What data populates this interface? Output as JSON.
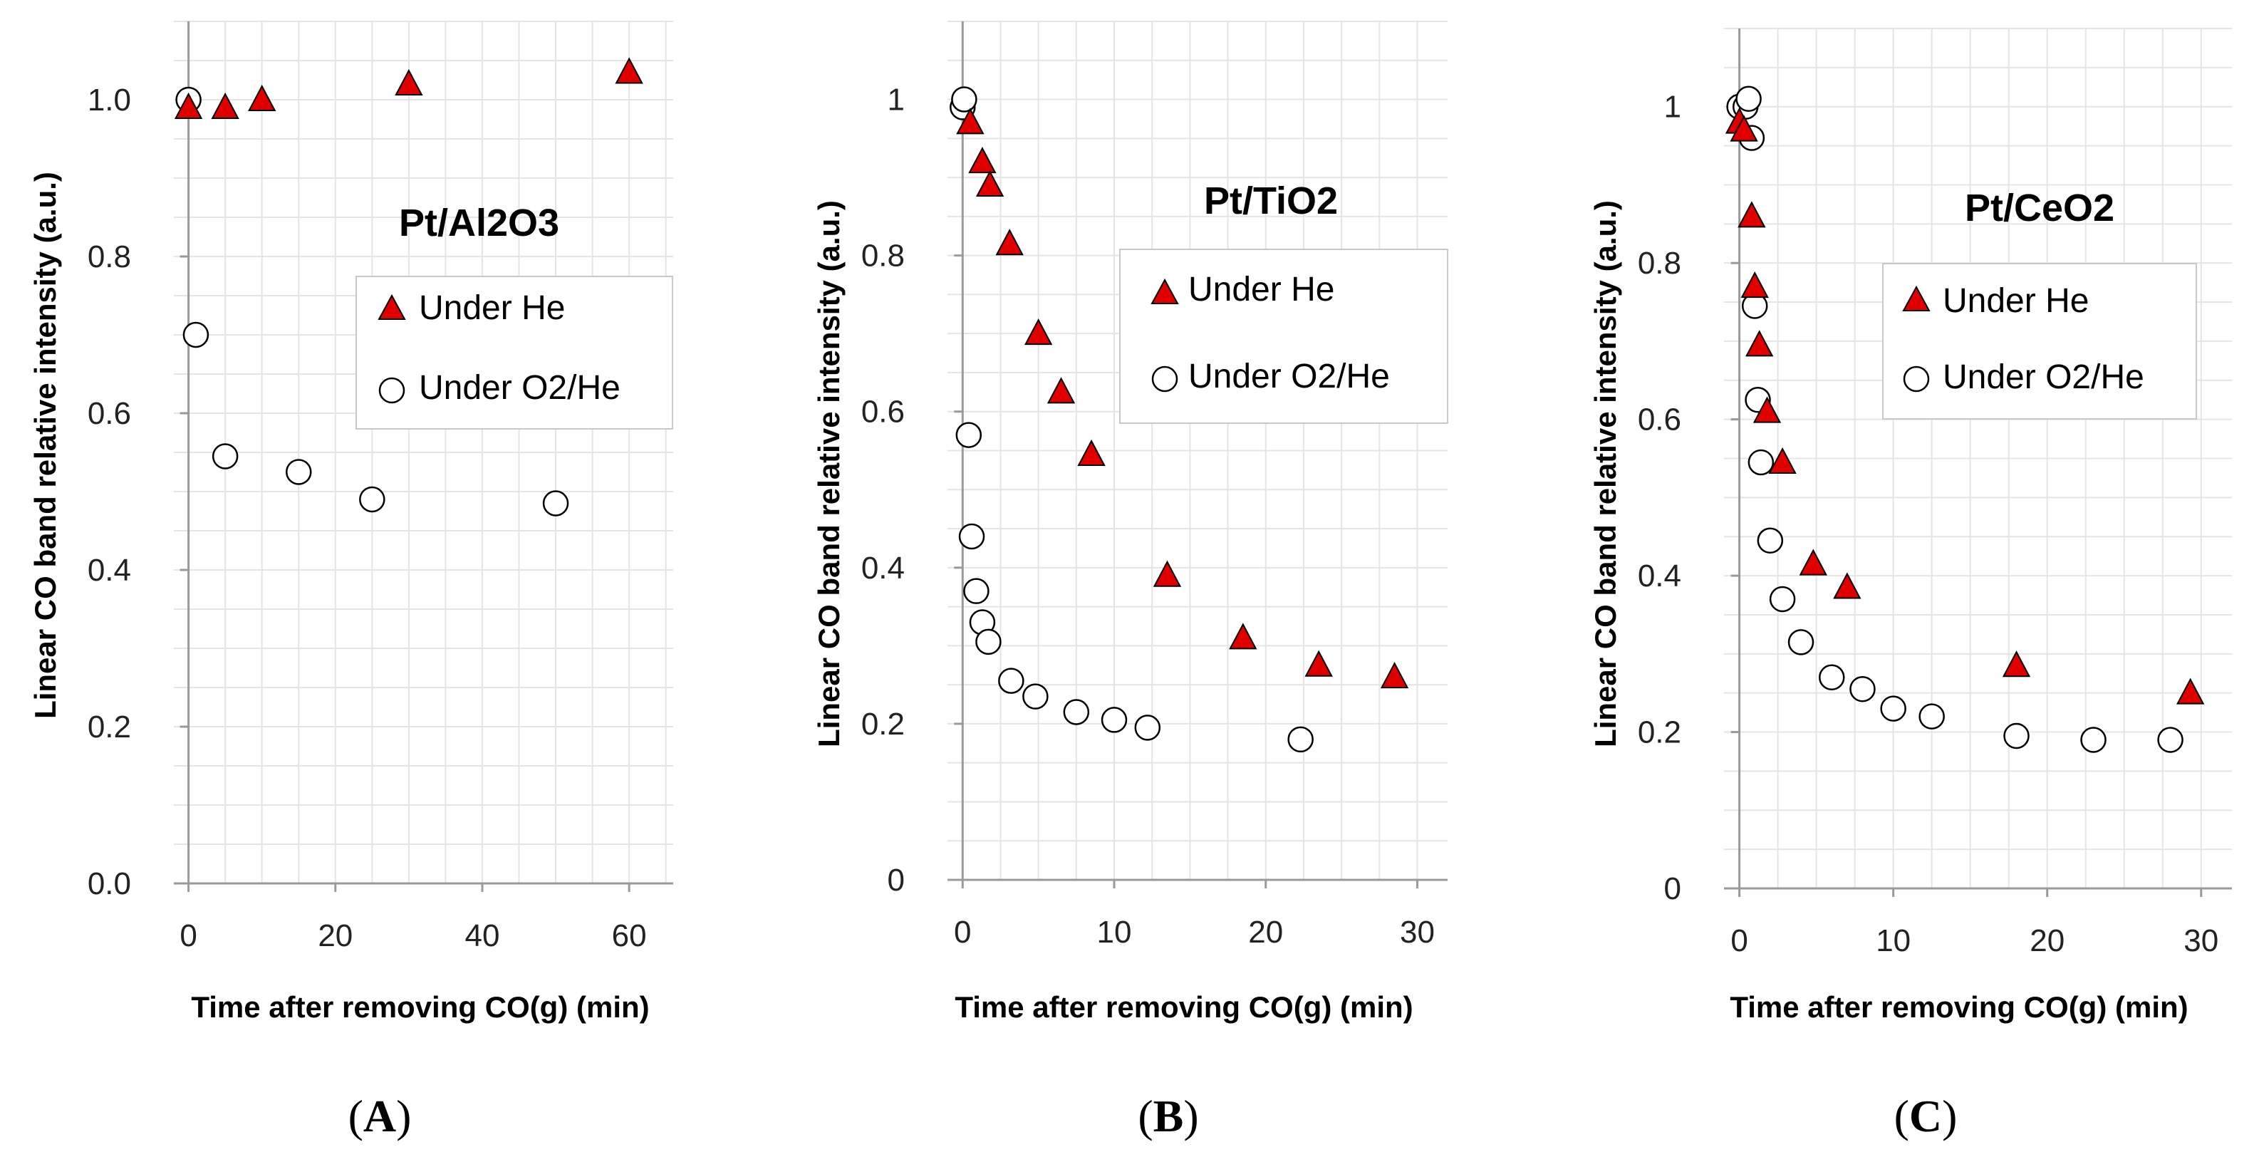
{
  "chart_data": [
    {
      "type": "scatter",
      "panel_label": "A",
      "title": "Pt/Al2O3",
      "xlabel": "Time after removing CO(g) (min)",
      "ylabel": "Linear CO band relative intensity (a.u.)",
      "xlim": [
        -2,
        66
      ],
      "ylim": [
        0,
        1.1
      ],
      "x_ticks": [
        "0",
        "20",
        "40",
        "60"
      ],
      "y_ticks": [
        "0.0",
        "0.2",
        "0.4",
        "0.6",
        "0.8",
        "1.0"
      ],
      "legend_position": "center-right",
      "series": [
        {
          "name": "Under He",
          "marker": "triangle",
          "color": "#e00000",
          "x": [
            0,
            5,
            10,
            30,
            60
          ],
          "y": [
            0.99,
            0.99,
            1.0,
            1.02,
            1.035
          ]
        },
        {
          "name": "Under O2/He",
          "marker": "circle",
          "color": "#ffffff",
          "x": [
            0,
            1,
            5,
            15,
            25,
            50
          ],
          "y": [
            1.0,
            0.7,
            0.545,
            0.525,
            0.49,
            0.485
          ]
        }
      ]
    },
    {
      "type": "scatter",
      "panel_label": "B",
      "title": "Pt/TiO2",
      "xlabel": "Time after removing CO(g) (min)",
      "ylabel": "Linear CO band relative intensity (a.u.)",
      "xlim": [
        -1,
        32
      ],
      "ylim": [
        0,
        1.1
      ],
      "x_ticks": [
        "0",
        "10",
        "20",
        "30"
      ],
      "y_ticks": [
        "0",
        "0.2",
        "0.4",
        "0.6",
        "0.8",
        "1"
      ],
      "legend_position": "center-right",
      "series": [
        {
          "name": "Under He",
          "marker": "triangle",
          "color": "#e00000",
          "x": [
            0.5,
            1.3,
            1.8,
            3.1,
            5.0,
            6.5,
            8.5,
            13.5,
            18.5,
            23.5,
            28.5
          ],
          "y": [
            0.97,
            0.92,
            0.89,
            0.815,
            0.7,
            0.625,
            0.545,
            0.39,
            0.31,
            0.275,
            0.26
          ]
        },
        {
          "name": "Under O2/He",
          "marker": "circle",
          "color": "#ffffff",
          "x": [
            0,
            0.1,
            0.4,
            0.6,
            0.9,
            1.3,
            1.7,
            3.2,
            4.8,
            7.5,
            10.0,
            12.2,
            22.3
          ],
          "y": [
            0.99,
            1.0,
            0.57,
            0.44,
            0.37,
            0.33,
            0.305,
            0.255,
            0.235,
            0.215,
            0.205,
            0.195,
            0.18
          ]
        }
      ]
    },
    {
      "type": "scatter",
      "panel_label": "C",
      "title": "Pt/CeO2",
      "xlabel": "Time after removing CO(g) (min)",
      "ylabel": "Linear CO band relative intensity (a.u.)",
      "xlim": [
        -1,
        32
      ],
      "ylim": [
        0,
        1.1
      ],
      "x_ticks": [
        "0",
        "10",
        "20",
        "30"
      ],
      "y_ticks": [
        "0",
        "0.2",
        "0.4",
        "0.6",
        "0.8",
        "1"
      ],
      "legend_position": "center-right",
      "series": [
        {
          "name": "Under He",
          "marker": "triangle",
          "color": "#e00000",
          "x": [
            0,
            0.3,
            0.8,
            1.0,
            1.3,
            1.8,
            2.8,
            4.8,
            7.0,
            18.0,
            29.3
          ],
          "y": [
            0.98,
            0.97,
            0.86,
            0.77,
            0.695,
            0.61,
            0.545,
            0.415,
            0.385,
            0.285,
            0.25
          ]
        },
        {
          "name": "Under O2/He",
          "marker": "circle",
          "color": "#ffffff",
          "x": [
            0,
            0.4,
            0.6,
            0.8,
            1.0,
            1.2,
            1.4,
            2.0,
            2.8,
            4.0,
            6.0,
            8.0,
            10.0,
            12.5,
            18.0,
            23.0,
            28.0
          ],
          "y": [
            1.0,
            1.0,
            1.01,
            0.96,
            0.745,
            0.625,
            0.545,
            0.445,
            0.37,
            0.315,
            0.27,
            0.255,
            0.23,
            0.22,
            0.195,
            0.19,
            0.19
          ]
        }
      ]
    }
  ]
}
